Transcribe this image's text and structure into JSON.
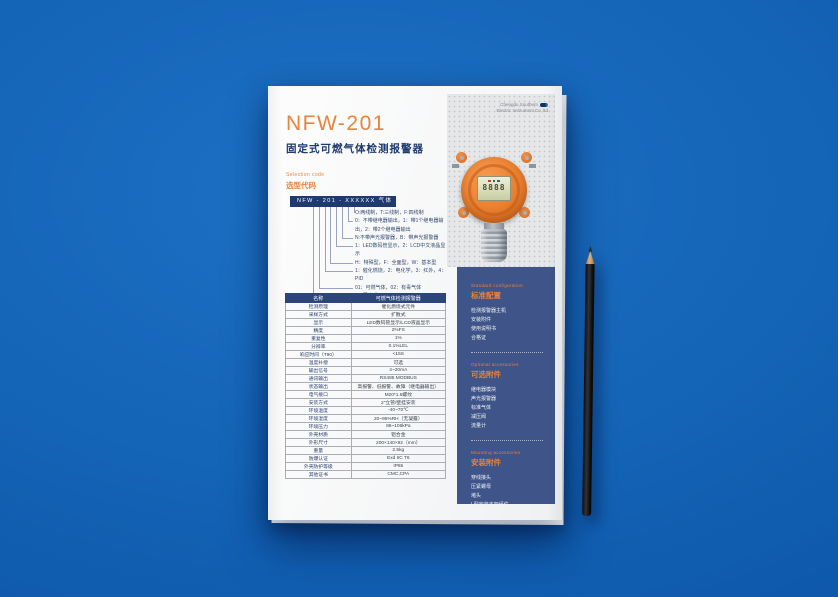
{
  "colors": {
    "accent_orange": "#E8833C",
    "navy": "#1E3A6E",
    "sidebar_blue": "#3F5488",
    "background_blue": "#1261B4",
    "device_orange": "#E87F2E"
  },
  "page": {
    "brand": {
      "line1": "Chengdu Southern",
      "line2": "Electric Instrument Co.,ltd"
    },
    "title": "NFW-201",
    "subtitle": "固定式可燃气体检测报警器",
    "selection_code_en": "Selection code",
    "selection_code_zh": "选型代码",
    "code_bar": "NFW - 201 - XXXXXX 气体",
    "options": [
      "O:两线制，T:三线制，F:四线制",
      "0：不带继电器输出，1：带1个继电器输出，2：带2个继电器输出",
      "N:不带声光报警器，B：带声光报警器",
      "1：LED数码管显示，2：LCD中文液晶显示",
      "H：特殊型，F：全面型，W：基本型",
      "1：催化燃烧，2：电化学，3：红外，4：PID",
      "01：可燃气体，02：有毒气体",
      "2：固定式"
    ],
    "table": {
      "headers": [
        "名称",
        "可燃气体检测报警器"
      ],
      "rows": [
        [
          "检测原理",
          "催化燃烧式元件"
        ],
        [
          "采样方式",
          "扩散式"
        ],
        [
          "显示",
          "LED数码管显示/LCD液晶显示"
        ],
        [
          "精度",
          "2%FS"
        ],
        [
          "重复性",
          "1%"
        ],
        [
          "分辨率",
          "0.1%LEL"
        ],
        [
          "响应时间（T90）",
          "<15S"
        ],
        [
          "温度补偿",
          "可选"
        ],
        [
          "输出信号",
          "4~20mA"
        ],
        [
          "通讯输出",
          "RS485 MODBUS"
        ],
        [
          "状态输出",
          "高报警、低报警、故障（继电器输出）"
        ],
        [
          "电气接口",
          "M20*1.5螺纹"
        ],
        [
          "安装方式",
          "2\"立管/壁挂安装"
        ],
        [
          "环境温度",
          "-40~70℃"
        ],
        [
          "环境湿度",
          "20~95%RH（无凝露）"
        ],
        [
          "环境压力",
          "86~106kPa"
        ],
        [
          "外壳材质",
          "铝合金"
        ],
        [
          "外形尺寸",
          "200×140×92（mm）"
        ],
        [
          "重量",
          "2.5kg"
        ],
        [
          "防爆认证",
          "Exd IIC T6"
        ],
        [
          "外壳防护等级",
          "IP65"
        ],
        [
          "其他证书",
          "CMC,CPA"
        ]
      ]
    },
    "sidebar": {
      "sections": [
        {
          "en": "Standard configuration",
          "zh": "标准配置",
          "items": [
            "检测报警器主机",
            "安装附件",
            "使用说明书",
            "合格证"
          ]
        },
        {
          "en": "Optional accessories",
          "zh": "可选附件",
          "items": [
            "继电器模块",
            "声光报警器",
            "标准气体",
            "减压阀",
            "流量计"
          ]
        },
        {
          "en": "Mounting accessories",
          "zh": "安装附件",
          "items": [
            "穿线接头",
            "压紧螺母",
            "堵头",
            "L型安装支架组件"
          ]
        }
      ]
    },
    "device": {
      "display": "8888"
    }
  }
}
